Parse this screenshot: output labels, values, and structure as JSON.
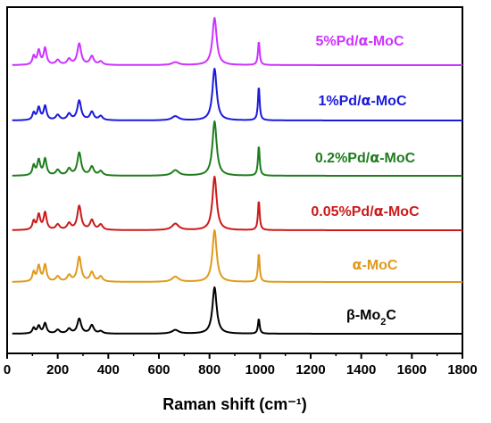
{
  "chart_data": {
    "type": "line",
    "title": "",
    "xlabel": "Raman shift (cm⁻¹)",
    "ylabel": "",
    "xlim": [
      0,
      1800
    ],
    "xticks": [
      0,
      200,
      400,
      600,
      800,
      1000,
      1200,
      1400,
      1600,
      1800
    ],
    "xtick_labels": [
      "0",
      "200",
      "400",
      "600",
      "800",
      "1000",
      "1200",
      "1400",
      "1600",
      "1800"
    ],
    "y_ticks_shown": false,
    "grid": false,
    "legend": "labels placed beside each stacked spectrum",
    "stacked_offset": true,
    "peak_positions_cm-1": [
      105,
      125,
      150,
      200,
      245,
      285,
      335,
      370,
      665,
      820,
      995
    ],
    "series": [
      {
        "name": "5%Pd/α-MoC",
        "color": "#cc33ff",
        "label_parts": [
          "5%Pd/",
          "α",
          "-MoC"
        ],
        "peaks": [
          {
            "x": 105,
            "h": 0.18,
            "w": 6
          },
          {
            "x": 125,
            "h": 0.3,
            "w": 7
          },
          {
            "x": 150,
            "h": 0.35,
            "w": 7
          },
          {
            "x": 200,
            "h": 0.1,
            "w": 9
          },
          {
            "x": 245,
            "h": 0.12,
            "w": 9
          },
          {
            "x": 285,
            "h": 0.45,
            "w": 9
          },
          {
            "x": 335,
            "h": 0.18,
            "w": 9
          },
          {
            "x": 370,
            "h": 0.07,
            "w": 9
          },
          {
            "x": 665,
            "h": 0.06,
            "w": 16
          },
          {
            "x": 820,
            "h": 1.0,
            "w": 10
          },
          {
            "x": 995,
            "h": 0.5,
            "w": 4
          }
        ]
      },
      {
        "name": "1%Pd/α-MoC",
        "color": "#1a1adb",
        "label_parts": [
          "1%Pd/",
          "α",
          "-MoC"
        ],
        "peaks": [
          {
            "x": 105,
            "h": 0.14,
            "w": 6
          },
          {
            "x": 125,
            "h": 0.24,
            "w": 7
          },
          {
            "x": 150,
            "h": 0.27,
            "w": 7
          },
          {
            "x": 200,
            "h": 0.1,
            "w": 9
          },
          {
            "x": 245,
            "h": 0.12,
            "w": 9
          },
          {
            "x": 285,
            "h": 0.38,
            "w": 9
          },
          {
            "x": 335,
            "h": 0.16,
            "w": 9
          },
          {
            "x": 370,
            "h": 0.08,
            "w": 9
          },
          {
            "x": 665,
            "h": 0.08,
            "w": 16
          },
          {
            "x": 820,
            "h": 1.0,
            "w": 10
          },
          {
            "x": 995,
            "h": 0.65,
            "w": 4
          }
        ]
      },
      {
        "name": "0.2%Pd/α-MoC",
        "color": "#1e7d1e",
        "label_parts": [
          "0.2%Pd/",
          "α",
          "-MoC"
        ],
        "peaks": [
          {
            "x": 105,
            "h": 0.18,
            "w": 6
          },
          {
            "x": 125,
            "h": 0.28,
            "w": 7
          },
          {
            "x": 150,
            "h": 0.3,
            "w": 7
          },
          {
            "x": 200,
            "h": 0.1,
            "w": 9
          },
          {
            "x": 245,
            "h": 0.12,
            "w": 9
          },
          {
            "x": 285,
            "h": 0.42,
            "w": 9
          },
          {
            "x": 335,
            "h": 0.16,
            "w": 9
          },
          {
            "x": 370,
            "h": 0.08,
            "w": 9
          },
          {
            "x": 665,
            "h": 0.1,
            "w": 16
          },
          {
            "x": 820,
            "h": 1.0,
            "w": 10
          },
          {
            "x": 995,
            "h": 0.55,
            "w": 4
          }
        ]
      },
      {
        "name": "0.05%Pd/α-MoC",
        "color": "#cc1a1a",
        "label_parts": [
          "0.05%Pd/",
          "α",
          "-MoC"
        ],
        "peaks": [
          {
            "x": 105,
            "h": 0.16,
            "w": 6
          },
          {
            "x": 125,
            "h": 0.28,
            "w": 7
          },
          {
            "x": 150,
            "h": 0.32,
            "w": 7
          },
          {
            "x": 200,
            "h": 0.1,
            "w": 9
          },
          {
            "x": 245,
            "h": 0.12,
            "w": 9
          },
          {
            "x": 285,
            "h": 0.45,
            "w": 9
          },
          {
            "x": 335,
            "h": 0.18,
            "w": 9
          },
          {
            "x": 370,
            "h": 0.1,
            "w": 9
          },
          {
            "x": 665,
            "h": 0.12,
            "w": 16
          },
          {
            "x": 820,
            "h": 1.0,
            "w": 10
          },
          {
            "x": 995,
            "h": 0.55,
            "w": 4
          }
        ]
      },
      {
        "name": "α-MoC",
        "color": "#e09a1a",
        "label_parts": [
          "",
          "α",
          "-MoC"
        ],
        "peaks": [
          {
            "x": 105,
            "h": 0.18,
            "w": 6
          },
          {
            "x": 125,
            "h": 0.3,
            "w": 7
          },
          {
            "x": 150,
            "h": 0.32,
            "w": 7
          },
          {
            "x": 200,
            "h": 0.1,
            "w": 9
          },
          {
            "x": 245,
            "h": 0.12,
            "w": 9
          },
          {
            "x": 285,
            "h": 0.48,
            "w": 9
          },
          {
            "x": 335,
            "h": 0.18,
            "w": 9
          },
          {
            "x": 370,
            "h": 0.1,
            "w": 9
          },
          {
            "x": 665,
            "h": 0.1,
            "w": 16
          },
          {
            "x": 820,
            "h": 1.0,
            "w": 10
          },
          {
            "x": 995,
            "h": 0.55,
            "w": 4
          }
        ]
      },
      {
        "name": "β-Mo₂C",
        "color": "#000000",
        "label_parts": [
          "β-Mo",
          "2",
          "C"
        ],
        "peaks": [
          {
            "x": 105,
            "h": 0.12,
            "w": 6
          },
          {
            "x": 125,
            "h": 0.16,
            "w": 7
          },
          {
            "x": 150,
            "h": 0.22,
            "w": 7
          },
          {
            "x": 200,
            "h": 0.08,
            "w": 9
          },
          {
            "x": 245,
            "h": 0.1,
            "w": 9
          },
          {
            "x": 285,
            "h": 0.32,
            "w": 9
          },
          {
            "x": 335,
            "h": 0.18,
            "w": 9
          },
          {
            "x": 370,
            "h": 0.05,
            "w": 9
          },
          {
            "x": 665,
            "h": 0.08,
            "w": 16
          },
          {
            "x": 820,
            "h": 1.0,
            "w": 10
          },
          {
            "x": 995,
            "h": 0.32,
            "w": 4
          }
        ]
      }
    ]
  }
}
